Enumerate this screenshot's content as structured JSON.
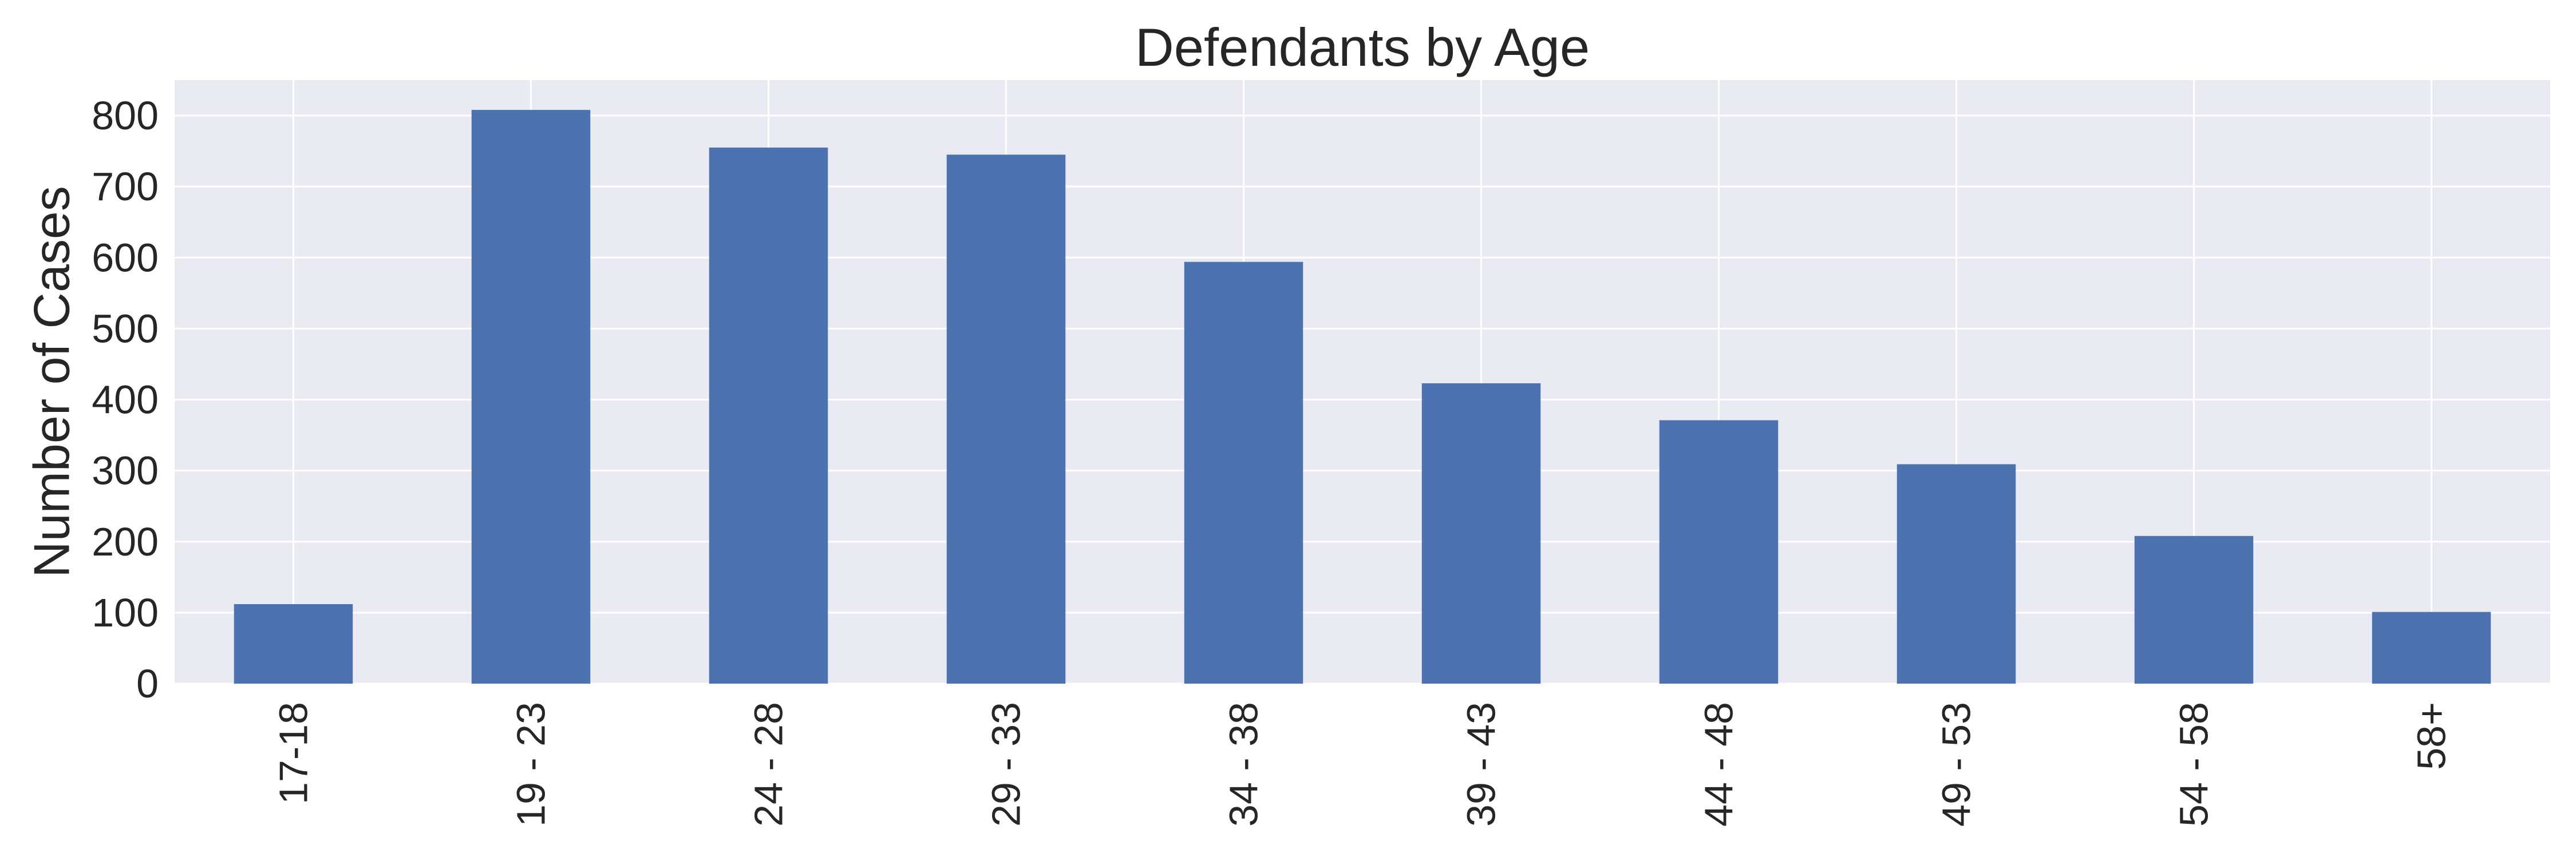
{
  "chart_data": {
    "type": "bar",
    "title": "Defendants by Age",
    "xlabel": "",
    "ylabel": "Number of Cases",
    "categories": [
      "17-18",
      "19 - 23",
      "24 - 28",
      "29 - 33",
      "34 - 38",
      "39 - 43",
      "44 - 48",
      "49 - 53",
      "54 - 58",
      "58+"
    ],
    "values": [
      112,
      808,
      755,
      745,
      594,
      423,
      371,
      309,
      208,
      101
    ],
    "ylim": [
      0,
      850
    ],
    "yticks": [
      "0",
      "100",
      "200",
      "300",
      "400",
      "500",
      "600",
      "700",
      "800"
    ],
    "grid": true,
    "legend": "none",
    "colors": {
      "bar": "#4C72B0",
      "plot_background": "#EAEAF2",
      "grid": "#FFFFFF",
      "text": "#262626"
    }
  }
}
